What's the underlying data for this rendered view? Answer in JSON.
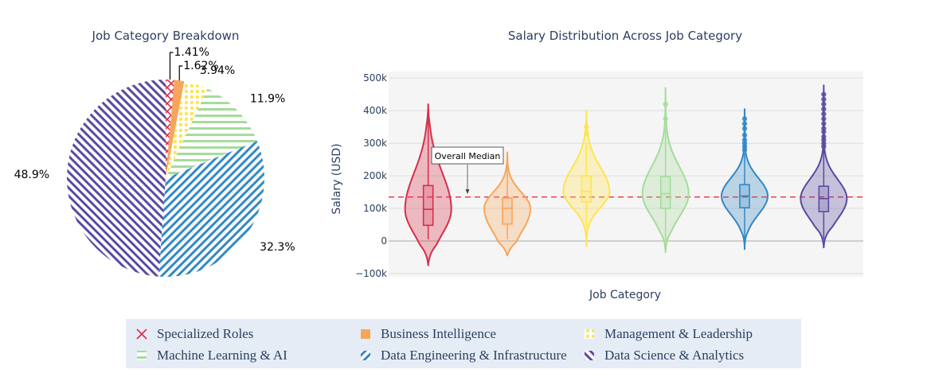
{
  "chart_data": [
    {
      "type": "pie",
      "title": "Job Category Breakdown",
      "slices": [
        {
          "label": "Specialized Roles",
          "percent": 1.41,
          "text": "1.41%",
          "color": "#d62e4a",
          "pattern": "x"
        },
        {
          "label": "Business Intelligence",
          "percent": 1.62,
          "text": "1.62%",
          "color": "#f7a55a",
          "pattern": "solid"
        },
        {
          "label": "Management & Leadership",
          "percent": 3.94,
          "text": "3.94%",
          "color": "#ffe44d",
          "pattern": "dots"
        },
        {
          "label": "Machine Learning & AI",
          "percent": 11.9,
          "text": "11.9%",
          "color": "#a4dc9a",
          "pattern": "horizontal"
        },
        {
          "label": "Data Engineering & Infrastructure",
          "percent": 32.3,
          "text": "32.3%",
          "color": "#3388c4",
          "pattern": "diag-up"
        },
        {
          "label": "Data Science & Analytics",
          "percent": 48.9,
          "text": "48.9%",
          "color": "#5a4aa0",
          "pattern": "diag-down"
        }
      ]
    },
    {
      "type": "violin",
      "title": "Salary Distribution Across Job Category",
      "xlabel": "Job Category",
      "ylabel": "Salary (USD)",
      "ylim": [
        -110000,
        520000
      ],
      "yticks": [
        -100000,
        0,
        100000,
        200000,
        300000,
        400000,
        500000
      ],
      "ytick_labels": [
        "−100k",
        "0",
        "100k",
        "200k",
        "300k",
        "400k",
        "500k"
      ],
      "overall_median": 135000,
      "annotation": "Overall Median",
      "series": [
        {
          "name": "Specialized Roles",
          "color": "#d62e4a",
          "q1": 48000,
          "median": 97000,
          "q3": 170000,
          "whisker_low": 5000,
          "whisker_high": 420000,
          "range": [
            -75000,
            420000
          ],
          "outliers": []
        },
        {
          "name": "Business Intelligence",
          "color": "#f7a55a",
          "q1": 52000,
          "median": 100000,
          "q3": 132000,
          "whisker_low": 5000,
          "whisker_high": 270000,
          "range": [
            -45000,
            272000
          ],
          "outliers": []
        },
        {
          "name": "Management & Leadership",
          "color": "#ffe44d",
          "q1": 120000,
          "median": 152000,
          "q3": 200000,
          "whisker_low": 40000,
          "whisker_high": 300000,
          "range": [
            -15000,
            400000
          ],
          "outliers": [
            330000,
            350000
          ]
        },
        {
          "name": "Machine Learning & AI",
          "color": "#a4dc9a",
          "q1": 100000,
          "median": 145000,
          "q3": 198000,
          "whisker_low": 0,
          "whisker_high": 345000,
          "range": [
            -35000,
            470000
          ],
          "outliers": [
            375000,
            420000
          ]
        },
        {
          "name": "Data Engineering & Infrastructure",
          "color": "#3388c4",
          "q1": 102000,
          "median": 138000,
          "q3": 173000,
          "whisker_low": 5000,
          "whisker_high": 270000,
          "range": [
            -25000,
            405000
          ],
          "outliers": [
            280000,
            290000,
            300000,
            310000,
            325000,
            345000,
            360000,
            375000
          ]
        },
        {
          "name": "Data Science & Analytics",
          "color": "#5a4aa0",
          "q1": 90000,
          "median": 130000,
          "q3": 168000,
          "whisker_low": 5000,
          "whisker_high": 280000,
          "range": [
            -20000,
            478000
          ],
          "outliers": [
            290000,
            300000,
            310000,
            320000,
            335000,
            345000,
            360000,
            375000,
            390000,
            405000,
            420000,
            435000,
            450000
          ]
        }
      ]
    }
  ],
  "legend": {
    "items": [
      {
        "label": "Specialized Roles",
        "color": "#d62e4a",
        "pattern": "x"
      },
      {
        "label": "Business Intelligence",
        "color": "#f7a55a",
        "pattern": "solid"
      },
      {
        "label": "Management & Leadership",
        "color": "#ffe44d",
        "pattern": "dots"
      },
      {
        "label": "Machine Learning & AI",
        "color": "#a4dc9a",
        "pattern": "horizontal"
      },
      {
        "label": "Data Engineering & Infrastructure",
        "color": "#3388c4",
        "pattern": "diag-up"
      },
      {
        "label": "Data Science & Analytics",
        "color": "#5a4aa0",
        "pattern": "diag-down"
      }
    ],
    "placement": "bottom-center",
    "background": "#e5ecf6"
  }
}
